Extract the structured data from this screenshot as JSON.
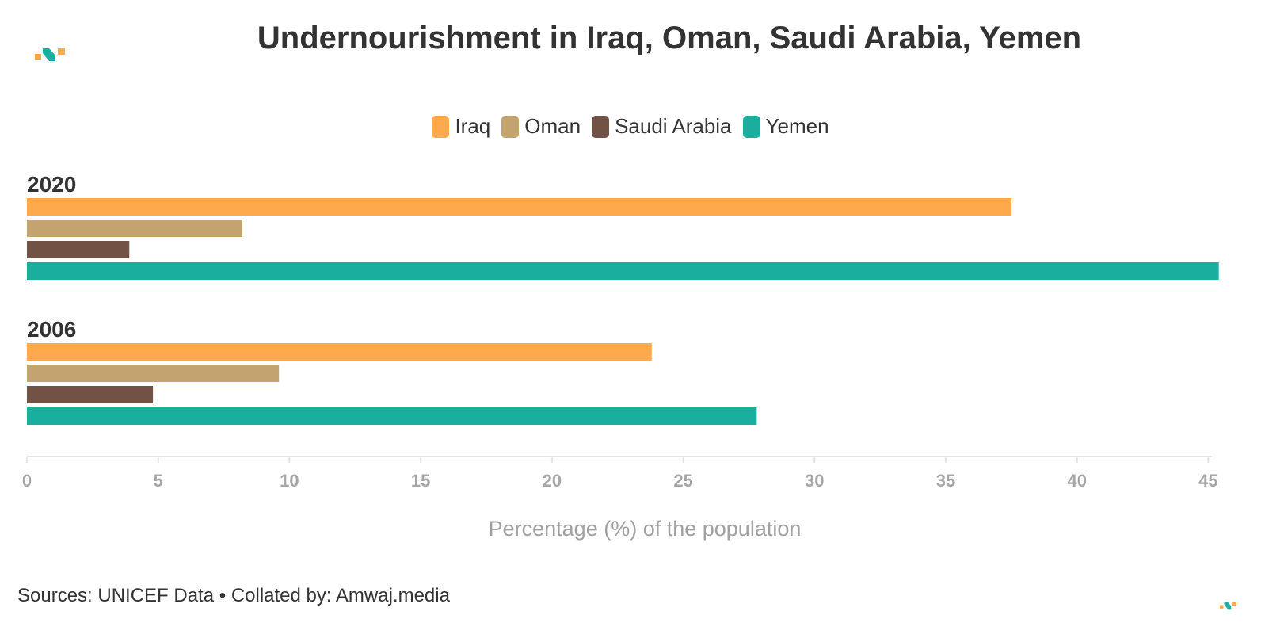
{
  "header": {
    "title": "Undernourishment in Iraq, Oman, Saudi Arabia, Yemen"
  },
  "footer": {
    "text": "Sources: UNICEF Data • Collated by: Amwaj.media"
  },
  "colors": {
    "accent_orange": "#FFA94D",
    "accent_teal": "#1AAE9F"
  },
  "icons": [
    "amwaj-logo-icon"
  ],
  "chart_data": {
    "type": "bar",
    "orientation": "horizontal",
    "title": "Undernourishment in Iraq, Oman, Saudi Arabia, Yemen",
    "xlabel": "Percentage (%) of the population",
    "ylabel": "",
    "xlim": [
      0,
      45.5
    ],
    "x_ticks": [
      0,
      5,
      10,
      15,
      20,
      25,
      30,
      35,
      40,
      45
    ],
    "grid": false,
    "legend_position": "top-center",
    "categories": [
      "2020",
      "2006"
    ],
    "series": [
      {
        "name": "Iraq",
        "color": "#FFA94D",
        "values": [
          37.5,
          23.8
        ]
      },
      {
        "name": "Oman",
        "color": "#C4A46E",
        "values": [
          8.2,
          9.6
        ]
      },
      {
        "name": "Saudi Arabia",
        "color": "#725244",
        "values": [
          3.9,
          4.8
        ]
      },
      {
        "name": "Yemen",
        "color": "#1AAE9F",
        "values": [
          45.4,
          27.8
        ]
      }
    ]
  }
}
